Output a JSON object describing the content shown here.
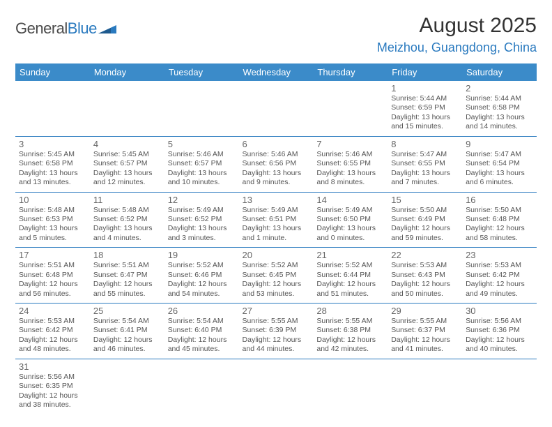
{
  "logo": {
    "text1": "General",
    "text2": "Blue"
  },
  "title": "August 2025",
  "location": "Meizhou, Guangdong, China",
  "colors": {
    "header_bg": "#3b8bc9",
    "accent": "#2a7abf",
    "text": "#333333",
    "muted": "#666666",
    "body": "#555555"
  },
  "weekdays": [
    "Sunday",
    "Monday",
    "Tuesday",
    "Wednesday",
    "Thursday",
    "Friday",
    "Saturday"
  ],
  "weeks": [
    [
      null,
      null,
      null,
      null,
      null,
      {
        "n": "1",
        "sr": "Sunrise: 5:44 AM",
        "ss": "Sunset: 6:59 PM",
        "dl": "Daylight: 13 hours and 15 minutes."
      },
      {
        "n": "2",
        "sr": "Sunrise: 5:44 AM",
        "ss": "Sunset: 6:58 PM",
        "dl": "Daylight: 13 hours and 14 minutes."
      }
    ],
    [
      {
        "n": "3",
        "sr": "Sunrise: 5:45 AM",
        "ss": "Sunset: 6:58 PM",
        "dl": "Daylight: 13 hours and 13 minutes."
      },
      {
        "n": "4",
        "sr": "Sunrise: 5:45 AM",
        "ss": "Sunset: 6:57 PM",
        "dl": "Daylight: 13 hours and 12 minutes."
      },
      {
        "n": "5",
        "sr": "Sunrise: 5:46 AM",
        "ss": "Sunset: 6:57 PM",
        "dl": "Daylight: 13 hours and 10 minutes."
      },
      {
        "n": "6",
        "sr": "Sunrise: 5:46 AM",
        "ss": "Sunset: 6:56 PM",
        "dl": "Daylight: 13 hours and 9 minutes."
      },
      {
        "n": "7",
        "sr": "Sunrise: 5:46 AM",
        "ss": "Sunset: 6:55 PM",
        "dl": "Daylight: 13 hours and 8 minutes."
      },
      {
        "n": "8",
        "sr": "Sunrise: 5:47 AM",
        "ss": "Sunset: 6:55 PM",
        "dl": "Daylight: 13 hours and 7 minutes."
      },
      {
        "n": "9",
        "sr": "Sunrise: 5:47 AM",
        "ss": "Sunset: 6:54 PM",
        "dl": "Daylight: 13 hours and 6 minutes."
      }
    ],
    [
      {
        "n": "10",
        "sr": "Sunrise: 5:48 AM",
        "ss": "Sunset: 6:53 PM",
        "dl": "Daylight: 13 hours and 5 minutes."
      },
      {
        "n": "11",
        "sr": "Sunrise: 5:48 AM",
        "ss": "Sunset: 6:52 PM",
        "dl": "Daylight: 13 hours and 4 minutes."
      },
      {
        "n": "12",
        "sr": "Sunrise: 5:49 AM",
        "ss": "Sunset: 6:52 PM",
        "dl": "Daylight: 13 hours and 3 minutes."
      },
      {
        "n": "13",
        "sr": "Sunrise: 5:49 AM",
        "ss": "Sunset: 6:51 PM",
        "dl": "Daylight: 13 hours and 1 minute."
      },
      {
        "n": "14",
        "sr": "Sunrise: 5:49 AM",
        "ss": "Sunset: 6:50 PM",
        "dl": "Daylight: 13 hours and 0 minutes."
      },
      {
        "n": "15",
        "sr": "Sunrise: 5:50 AM",
        "ss": "Sunset: 6:49 PM",
        "dl": "Daylight: 12 hours and 59 minutes."
      },
      {
        "n": "16",
        "sr": "Sunrise: 5:50 AM",
        "ss": "Sunset: 6:48 PM",
        "dl": "Daylight: 12 hours and 58 minutes."
      }
    ],
    [
      {
        "n": "17",
        "sr": "Sunrise: 5:51 AM",
        "ss": "Sunset: 6:48 PM",
        "dl": "Daylight: 12 hours and 56 minutes."
      },
      {
        "n": "18",
        "sr": "Sunrise: 5:51 AM",
        "ss": "Sunset: 6:47 PM",
        "dl": "Daylight: 12 hours and 55 minutes."
      },
      {
        "n": "19",
        "sr": "Sunrise: 5:52 AM",
        "ss": "Sunset: 6:46 PM",
        "dl": "Daylight: 12 hours and 54 minutes."
      },
      {
        "n": "20",
        "sr": "Sunrise: 5:52 AM",
        "ss": "Sunset: 6:45 PM",
        "dl": "Daylight: 12 hours and 53 minutes."
      },
      {
        "n": "21",
        "sr": "Sunrise: 5:52 AM",
        "ss": "Sunset: 6:44 PM",
        "dl": "Daylight: 12 hours and 51 minutes."
      },
      {
        "n": "22",
        "sr": "Sunrise: 5:53 AM",
        "ss": "Sunset: 6:43 PM",
        "dl": "Daylight: 12 hours and 50 minutes."
      },
      {
        "n": "23",
        "sr": "Sunrise: 5:53 AM",
        "ss": "Sunset: 6:42 PM",
        "dl": "Daylight: 12 hours and 49 minutes."
      }
    ],
    [
      {
        "n": "24",
        "sr": "Sunrise: 5:53 AM",
        "ss": "Sunset: 6:42 PM",
        "dl": "Daylight: 12 hours and 48 minutes."
      },
      {
        "n": "25",
        "sr": "Sunrise: 5:54 AM",
        "ss": "Sunset: 6:41 PM",
        "dl": "Daylight: 12 hours and 46 minutes."
      },
      {
        "n": "26",
        "sr": "Sunrise: 5:54 AM",
        "ss": "Sunset: 6:40 PM",
        "dl": "Daylight: 12 hours and 45 minutes."
      },
      {
        "n": "27",
        "sr": "Sunrise: 5:55 AM",
        "ss": "Sunset: 6:39 PM",
        "dl": "Daylight: 12 hours and 44 minutes."
      },
      {
        "n": "28",
        "sr": "Sunrise: 5:55 AM",
        "ss": "Sunset: 6:38 PM",
        "dl": "Daylight: 12 hours and 42 minutes."
      },
      {
        "n": "29",
        "sr": "Sunrise: 5:55 AM",
        "ss": "Sunset: 6:37 PM",
        "dl": "Daylight: 12 hours and 41 minutes."
      },
      {
        "n": "30",
        "sr": "Sunrise: 5:56 AM",
        "ss": "Sunset: 6:36 PM",
        "dl": "Daylight: 12 hours and 40 minutes."
      }
    ],
    [
      {
        "n": "31",
        "sr": "Sunrise: 5:56 AM",
        "ss": "Sunset: 6:35 PM",
        "dl": "Daylight: 12 hours and 38 minutes."
      },
      null,
      null,
      null,
      null,
      null,
      null
    ]
  ]
}
